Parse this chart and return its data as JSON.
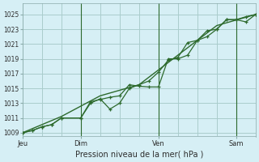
{
  "background_color": "#d6eff5",
  "grid_color": "#aacccc",
  "line_color": "#2d6a2d",
  "marker_color": "#2d6a2d",
  "title": "Pression niveau de la mer( hPa )",
  "ylabel_ticks": [
    1009,
    1011,
    1013,
    1015,
    1017,
    1019,
    1021,
    1023,
    1025
  ],
  "ylim": [
    1008.5,
    1026.5
  ],
  "xlim": [
    0,
    72
  ],
  "day_labels": [
    "Jeu",
    "Dim",
    "Ven",
    "Sam"
  ],
  "day_positions": [
    0,
    18,
    42,
    66
  ],
  "vline_positions": [
    18,
    42,
    66
  ],
  "series1_x": [
    0,
    3,
    6,
    9,
    12,
    18,
    21,
    24,
    27,
    30,
    33,
    36,
    39,
    42,
    45,
    48,
    51,
    54,
    57,
    60,
    63,
    66,
    69,
    72
  ],
  "series1_y": [
    1009.0,
    1009.3,
    1009.8,
    1010.1,
    1011.0,
    1011.0,
    1013.2,
    1013.5,
    1013.8,
    1014.0,
    1015.5,
    1015.3,
    1015.2,
    1015.2,
    1019.0,
    1019.0,
    1019.5,
    1021.5,
    1022.0,
    1023.0,
    1024.3,
    1024.3,
    1024.0,
    1025.0
  ],
  "series2_x": [
    0,
    3,
    6,
    9,
    12,
    18,
    21,
    24,
    27,
    30,
    33,
    36,
    39,
    42,
    45,
    48,
    51,
    54,
    57,
    60,
    63,
    66,
    69,
    72
  ],
  "series2_y": [
    1009.0,
    1009.3,
    1009.8,
    1010.1,
    1011.0,
    1011.0,
    1013.0,
    1013.6,
    1012.2,
    1013.0,
    1015.0,
    1015.5,
    1016.0,
    1017.2,
    1018.8,
    1019.2,
    1021.2,
    1021.5,
    1022.8,
    1023.0,
    1024.3,
    1024.3,
    1024.7,
    1025.0
  ],
  "series3_x": [
    0,
    12,
    24,
    36,
    48,
    60,
    72
  ],
  "series3_y": [
    1009.0,
    1011.2,
    1014.0,
    1015.5,
    1019.5,
    1023.5,
    1025.0
  ]
}
